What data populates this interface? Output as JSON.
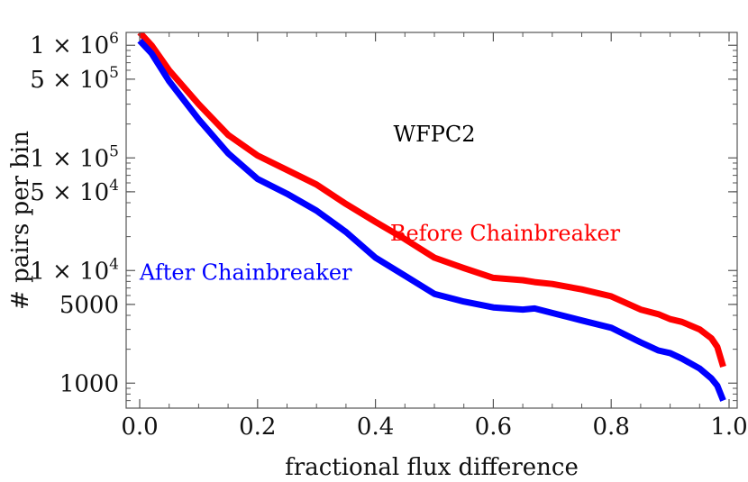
{
  "chart_data": {
    "type": "line",
    "xlabel": "fractional flux difference",
    "ylabel": "# pairs per bin",
    "xlim": [
      0,
      1.0
    ],
    "ylim": [
      600,
      1300000
    ],
    "yscale": "log",
    "grid": false,
    "x_ticks": [
      {
        "value": 0.0,
        "label": "0.0"
      },
      {
        "value": 0.2,
        "label": "0.2"
      },
      {
        "value": 0.4,
        "label": "0.4"
      },
      {
        "value": 0.6,
        "label": "0.6"
      },
      {
        "value": 0.8,
        "label": "0.8"
      },
      {
        "value": 1.0,
        "label": "1.0"
      }
    ],
    "y_ticks": [
      {
        "value": 1000000,
        "mantissa": "1",
        "exponent": "6"
      },
      {
        "value": 500000,
        "mantissa": "5",
        "exponent": "5"
      },
      {
        "value": 100000,
        "mantissa": "1",
        "exponent": "5"
      },
      {
        "value": 50000,
        "mantissa": "5",
        "exponent": "4"
      },
      {
        "value": 10000,
        "mantissa": "1",
        "exponent": "4"
      },
      {
        "value": 5000,
        "label": "5000"
      },
      {
        "value": 1000,
        "label": "1000"
      }
    ],
    "annotations": [
      {
        "text": "WFPC2",
        "x": 0.5,
        "y": 140000,
        "color": "#000000"
      },
      {
        "text": "Before Chainbreaker",
        "x": 0.62,
        "y": 18500,
        "color": "#ff0000"
      },
      {
        "text": "After Chainbreaker",
        "x": 0.18,
        "y": 8300,
        "color": "#0000ff"
      }
    ],
    "series": [
      {
        "color": "#ff0000",
        "x": [
          0.0,
          0.02,
          0.05,
          0.1,
          0.15,
          0.2,
          0.25,
          0.3,
          0.35,
          0.4,
          0.45,
          0.5,
          0.55,
          0.6,
          0.65,
          0.67,
          0.7,
          0.75,
          0.8,
          0.85,
          0.88,
          0.9,
          0.92,
          0.95,
          0.97,
          0.98,
          0.99
        ],
        "y": [
          1300000,
          1000000,
          600000,
          300000,
          160000,
          105000,
          78000,
          58000,
          39000,
          27000,
          19000,
          13000,
          10500,
          8600,
          8200,
          7900,
          7600,
          6800,
          5900,
          4500,
          4100,
          3700,
          3500,
          3000,
          2500,
          2100,
          1400
        ]
      },
      {
        "color": "#0000ff",
        "x": [
          0.0,
          0.02,
          0.05,
          0.1,
          0.15,
          0.2,
          0.25,
          0.3,
          0.35,
          0.4,
          0.45,
          0.5,
          0.55,
          0.6,
          0.65,
          0.67,
          0.7,
          0.75,
          0.8,
          0.85,
          0.88,
          0.9,
          0.92,
          0.95,
          0.97,
          0.98,
          0.99
        ],
        "y": [
          1100000,
          850000,
          480000,
          220000,
          110000,
          65000,
          48000,
          34000,
          22000,
          13000,
          9000,
          6200,
          5300,
          4700,
          4500,
          4600,
          4200,
          3600,
          3100,
          2300,
          1950,
          1850,
          1650,
          1350,
          1100,
          950,
          700
        ]
      }
    ]
  }
}
